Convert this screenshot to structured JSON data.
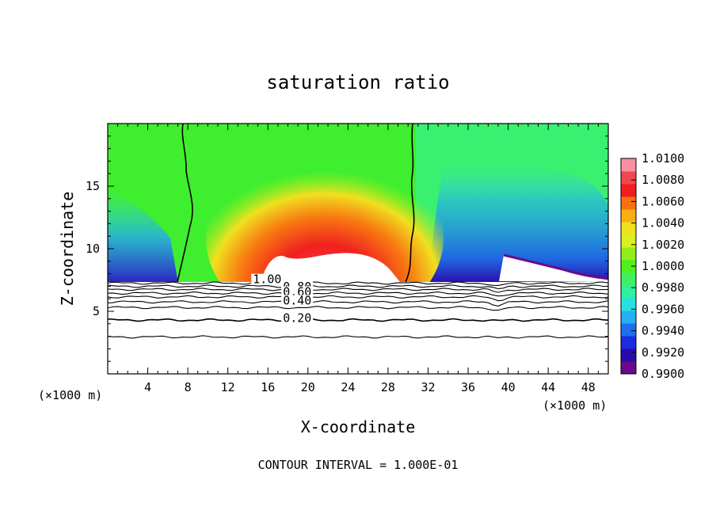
{
  "chart_data": {
    "type": "heatmap",
    "title": "saturation ratio",
    "xlabel": "X-coordinate",
    "ylabel": "Z-coordinate",
    "x_unit_left": "(×1000 m)",
    "x_unit_right": "(×1000 m)",
    "xlim": [
      0,
      50
    ],
    "ylim": [
      0,
      20
    ],
    "x_ticks": [
      4,
      8,
      12,
      16,
      20,
      24,
      28,
      32,
      36,
      40,
      44,
      48
    ],
    "y_ticks": [
      5,
      10,
      15
    ],
    "footer": "CONTOUR INTERVAL = 1.000E-01",
    "colorbar": {
      "labels": [
        "1.0100",
        "1.0080",
        "1.0060",
        "1.0040",
        "1.0020",
        "1.0000",
        "0.9980",
        "0.9960",
        "0.9940",
        "0.9920",
        "0.9900"
      ],
      "min": 0.99,
      "max": 1.01,
      "colors": [
        "#6a0a8a",
        "#2a0aa8",
        "#1a2ee0",
        "#1e6ef0",
        "#24b0f2",
        "#28e0e0",
        "#2ef0a0",
        "#40f060",
        "#4ef020",
        "#90ee18",
        "#d8f020",
        "#f0e020",
        "#f8b010",
        "#f87010",
        "#f02020",
        "#f04850",
        "#f890a0"
      ]
    },
    "contours": [
      {
        "label": "1.00",
        "x": 14.5,
        "z": 7.3
      },
      {
        "label": "0.80",
        "x": 17.5,
        "z": 6.7
      },
      {
        "label": "0.60",
        "x": 17.5,
        "z": 6.3
      },
      {
        "label": "0.40",
        "x": 17.5,
        "z": 5.6
      },
      {
        "label": "0.20",
        "x": 17.5,
        "z": 4.2
      }
    ],
    "cloud_boundary_x": [
      7.5,
      30.5
    ]
  }
}
